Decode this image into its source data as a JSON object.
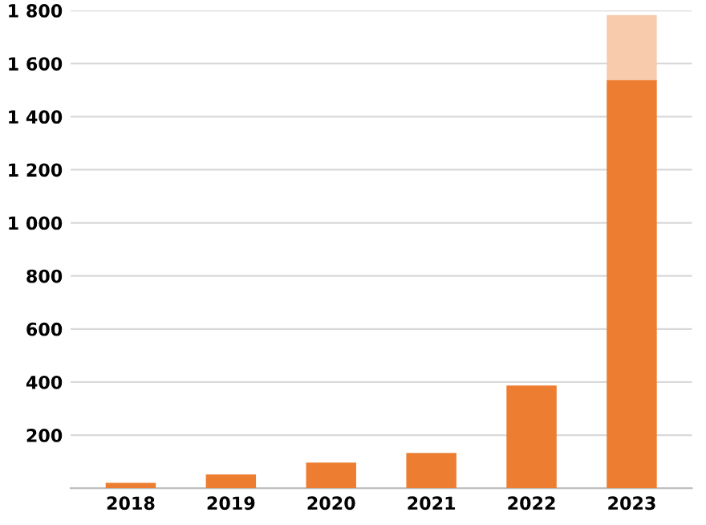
{
  "chart_data": {
    "type": "bar",
    "stacked": true,
    "categories": [
      "2018",
      "2019",
      "2020",
      "2021",
      "2022",
      "2023"
    ],
    "series": [
      {
        "color": "#ed7d31",
        "values": [
          20,
          52,
          97,
          133,
          387,
          1539
        ]
      },
      {
        "color": "#f8cbad",
        "values": [
          null,
          null,
          null,
          null,
          null,
          244
        ]
      }
    ],
    "ylim": [
      0,
      1800
    ],
    "yticks": [
      {
        "value": 200,
        "label": "200"
      },
      {
        "value": 400,
        "label": "400"
      },
      {
        "value": 600,
        "label": "600"
      },
      {
        "value": 800,
        "label": "800"
      },
      {
        "value": 1000,
        "label": "1 000"
      },
      {
        "value": 1200,
        "label": "1 200"
      },
      {
        "value": 1400,
        "label": "1 400"
      },
      {
        "value": 1600,
        "label": "1 600"
      },
      {
        "value": 1800,
        "label": "1 800"
      }
    ],
    "grid": "y",
    "legend": false
  }
}
